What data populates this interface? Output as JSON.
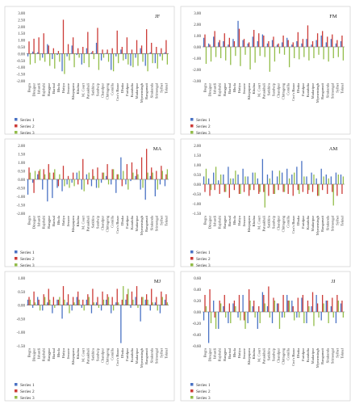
{
  "colors": {
    "series1": "#4a72c4",
    "series2": "#cc3b37",
    "series3": "#93bd4a"
  },
  "chart_data": [
    {
      "type": "bar",
      "title": "JF",
      "ylim": [
        -2.0,
        3.0
      ],
      "yticks": [
        "3.00",
        "2.50",
        "2.00",
        "1.50",
        "1.00",
        "0.50",
        "0.00",
        "-0.50",
        "-1.00",
        "-1.50",
        "-2.00"
      ],
      "categories": [
        "Bogra",
        "Dinajpur",
        "Ishurdi",
        "Rajshahi",
        "Rangpur",
        "Barisal",
        "Bhola",
        "Hatiya",
        "Jessore",
        "Khepupara",
        "Khulna",
        "M. Court",
        "Patuakhali",
        "Satkhira",
        "Sandwip",
        "Chandpur",
        "Chittagong",
        "Comilla",
        "Cox's Bazar",
        "Dhaka",
        "Faridpur",
        "Kutubdia",
        "Madaripur",
        "Mymensingh",
        "Rangamati",
        "Sitakunda",
        "Srimongal",
        "Sylhet",
        "Teknaf"
      ],
      "series": [
        {
          "name": "Series 1",
          "values": [
            -0.2,
            0.15,
            0.1,
            -0.3,
            0.7,
            -0.4,
            -0.1,
            -1.3,
            -0.2,
            0.6,
            -0.1,
            -0.8,
            0.4,
            0.1,
            0.8,
            -0.5,
            0.05,
            -1.2,
            -0.2,
            0.3,
            -0.4,
            -0.9,
            -0.3,
            0.4,
            -0.9,
            0.1,
            -0.7,
            -0.2,
            0.1
          ]
        },
        {
          "name": "Series 2",
          "values": [
            0.9,
            1.1,
            1.2,
            1.5,
            0.6,
            0.4,
            0.2,
            2.5,
            0.7,
            1.2,
            0.4,
            0.5,
            1.6,
            0.2,
            1.9,
            0.3,
            0.3,
            0.4,
            1.7,
            0.5,
            1.2,
            0.3,
            1.0,
            0.6,
            1.8,
            0.8,
            0.5,
            0.4,
            1.0
          ]
        },
        {
          "name": "Series 3",
          "values": [
            -0.8,
            -0.7,
            -0.5,
            -0.6,
            -0.9,
            -1.1,
            -0.6,
            -1.5,
            -0.5,
            -1.0,
            -0.3,
            -0.7,
            -1.0,
            -0.4,
            -1.2,
            -0.3,
            -0.6,
            -1.3,
            -0.7,
            -0.5,
            -0.8,
            -1.0,
            -0.9,
            -0.6,
            -1.3,
            -0.7,
            -1.1,
            -0.5,
            -0.8
          ]
        }
      ],
      "legend": [
        "Series 1",
        "Series 2",
        "Series 3"
      ]
    },
    {
      "type": "bar",
      "title": "FM",
      "ylim": [
        -3.0,
        3.0
      ],
      "yticks": [
        "3.00",
        "2.00",
        "1.00",
        "0.00",
        "-1.00",
        "-2.00",
        "-3.00"
      ],
      "categories": [
        "Bogra",
        "Dinajpur",
        "Ishurdi",
        "Rajshahi",
        "Rangpur",
        "Barisal",
        "Bhola",
        "Hatiya",
        "Jessore",
        "Khepupara",
        "Khulna",
        "M. Court",
        "Patuakhali",
        "Satkhira",
        "Sandwip",
        "Chandpur",
        "Chittagong",
        "Comilla",
        "Cox's Bazar",
        "Dhaka",
        "Faridpur",
        "Kutubdia",
        "Madaripur",
        "Mymensingh",
        "Rangamati",
        "Sitakunda",
        "Srimongal",
        "Sylhet",
        "Teknaf"
      ],
      "series": [
        {
          "name": "Series 1",
          "values": [
            0.8,
            0.3,
            0.9,
            0.4,
            0.5,
            0.2,
            0.7,
            2.3,
            0.6,
            0.3,
            0.9,
            0.5,
            1.1,
            0.3,
            0.6,
            0.2,
            0.4,
            0.8,
            0.2,
            0.5,
            0.3,
            0.7,
            0.2,
            0.6,
            1.0,
            0.4,
            0.7,
            0.3,
            0.5
          ]
        },
        {
          "name": "Series 2",
          "values": [
            1.1,
            0.2,
            1.4,
            0.6,
            1.2,
            0.8,
            0.5,
            1.6,
            0.7,
            0.4,
            1.5,
            1.2,
            1.0,
            0.5,
            0.9,
            0.3,
            1.0,
            0.6,
            0.4,
            1.3,
            0.7,
            1.9,
            0.5,
            1.2,
            1.4,
            0.9,
            1.1,
            0.6,
            1.0
          ]
        },
        {
          "name": "Series 3",
          "values": [
            -1.5,
            -1.3,
            -0.9,
            -1.0,
            -1.2,
            -1.6,
            -0.8,
            -1.7,
            -0.7,
            -2.0,
            -1.4,
            -0.8,
            -0.9,
            -2.2,
            -1.3,
            -0.6,
            -0.7,
            -1.8,
            -1.0,
            -1.1,
            -0.9,
            -1.2,
            -1.0,
            -0.7,
            -1.1,
            -1.3,
            -1.0,
            -0.9,
            -1.2
          ]
        }
      ],
      "legend": [
        "Series 1",
        "Series 2",
        "Series 3"
      ]
    },
    {
      "type": "bar",
      "title": "MA",
      "ylim": [
        -2.0,
        2.0
      ],
      "yticks": [
        "2.00",
        "1.50",
        "1.00",
        "0.50",
        "0.00",
        "-0.50",
        "-1.00",
        "-1.50",
        "-2.00"
      ],
      "categories": [
        "Bogra",
        "Dinajpur",
        "Ishurdi",
        "Rajshahi",
        "Rangpur",
        "Barisal",
        "Bhola",
        "Hatiya",
        "Jessore",
        "Khepupara",
        "Khulna",
        "M. Court",
        "Patuakhali",
        "Satkhira",
        "Sandwip",
        "Chandpur",
        "Chittagong",
        "Comilla",
        "Cox's Bazar",
        "Dhaka",
        "Faridpur",
        "Kutubdia",
        "Madaripur",
        "Mymensingh",
        "Rangamati",
        "Sitakunda",
        "Srimongal",
        "Sylhet",
        "Teknaf"
      ],
      "series": [
        {
          "name": "Series 1",
          "values": [
            -0.9,
            -0.2,
            0.3,
            -0.6,
            -1.3,
            -1.1,
            -0.5,
            -0.7,
            -0.3,
            -0.2,
            0.4,
            -0.6,
            0.3,
            -0.4,
            -0.5,
            -0.2,
            0.2,
            -0.3,
            -0.8,
            1.3,
            -0.3,
            -0.1,
            0.2,
            -0.6,
            -1.2,
            0.2,
            -1.0,
            -0.3,
            -0.4
          ]
        },
        {
          "name": "Series 2",
          "values": [
            0.7,
            -0.8,
            0.5,
            0.6,
            0.9,
            0.4,
            -0.4,
            0.8,
            0.2,
            0.4,
            -0.3,
            1.2,
            -0.3,
            0.6,
            0.7,
            0.4,
            0.9,
            0.6,
            0.3,
            -0.4,
            0.9,
            1.0,
            0.6,
            1.3,
            1.8,
            0.7,
            0.5,
            0.8,
            0.3
          ]
        },
        {
          "name": "Series 3",
          "values": [
            0.4,
            0.5,
            0.6,
            0.3,
            0.4,
            0.6,
            0.3,
            -0.4,
            -0.5,
            -0.4,
            0.5,
            -0.7,
            0.4,
            0.2,
            -0.5,
            0.4,
            -0.3,
            0.6,
            0.3,
            0.5,
            -0.6,
            0.4,
            0.3,
            -0.5,
            0.4,
            0.4,
            -0.6,
            0.5,
            0.6
          ]
        }
      ],
      "legend": [
        "Series 1",
        "Series 2",
        "Series 3"
      ]
    },
    {
      "type": "bar",
      "title": "AM",
      "ylim": [
        -1.5,
        2.0
      ],
      "yticks": [
        "2.00",
        "1.50",
        "1.00",
        "0.50",
        "0.00",
        "-0.50",
        "-1.00",
        "-1.50"
      ],
      "categories": [
        "Bogra",
        "Dinajpur",
        "Ishurdi",
        "Rajshahi",
        "Rangpur",
        "Barisal",
        "Bhola",
        "Hatiya",
        "Jessore",
        "Khepupara",
        "Khulna",
        "M. Court",
        "Patuakhali",
        "Satkhira",
        "Sandwip",
        "Chandpur",
        "Chittagong",
        "Comilla",
        "Cox's Bazar",
        "Dhaka",
        "Faridpur",
        "Kutubdia",
        "Madaripur",
        "Mymensingh",
        "Rangamati",
        "Sitakunda",
        "Srimongal",
        "Sylhet",
        "Teknaf"
      ],
      "series": [
        {
          "name": "Series 1",
          "values": [
            0.4,
            0.3,
            0.6,
            0.2,
            0.5,
            0.9,
            0.3,
            0.5,
            0.8,
            0.4,
            0.6,
            0.3,
            1.3,
            0.5,
            0.7,
            0.4,
            0.6,
            0.8,
            0.5,
            0.9,
            1.2,
            0.4,
            0.6,
            0.3,
            0.8,
            0.5,
            0.4,
            0.6,
            0.5
          ]
        },
        {
          "name": "Series 2",
          "values": [
            -0.4,
            -0.6,
            -0.3,
            -0.5,
            -0.4,
            -0.7,
            -0.3,
            -0.5,
            -0.4,
            -0.6,
            -0.3,
            -0.5,
            -0.4,
            -0.6,
            -0.5,
            -0.3,
            -0.4,
            -0.5,
            -0.6,
            -0.3,
            -0.4,
            -0.5,
            -0.4,
            -0.6,
            -0.3,
            -0.5,
            -0.4,
            -0.6,
            -0.5
          ]
        },
        {
          "name": "Series 3",
          "values": [
            0.8,
            -0.3,
            0.9,
            0.5,
            -0.4,
            0.3,
            0.7,
            -0.5,
            0.4,
            -0.3,
            0.6,
            -0.4,
            -1.2,
            0.3,
            -0.5,
            0.7,
            -0.4,
            0.3,
            0.6,
            -0.5,
            0.4,
            -0.3,
            0.5,
            -0.6,
            0.4,
            0.3,
            -1.1,
            0.5,
            0.4
          ]
        }
      ],
      "legend": [
        "Series 1",
        "Series 2",
        "Series 3"
      ]
    },
    {
      "type": "bar",
      "title": "MJ",
      "ylim": [
        -1.5,
        1.0
      ],
      "yticks": [
        "1.00",
        "0.50",
        "0.00",
        "-0.50",
        "-1.00",
        "-1.50"
      ],
      "categories": [
        "Bogra",
        "Dinajpur",
        "Ishurdi",
        "Rajshahi",
        "Rangpur",
        "Barisal",
        "Bhola",
        "Hatiya",
        "Jessore",
        "Khepupara",
        "Khulna",
        "M. Court",
        "Patuakhali",
        "Satkhira",
        "Sandwip",
        "Chandpur",
        "Chittagong",
        "Comilla",
        "Cox's Bazar",
        "Dhaka",
        "Faridpur",
        "Kutubdia",
        "Madaripur",
        "Mymensingh",
        "Rangamati",
        "Sitakunda",
        "Srimongal",
        "Sylhet",
        "Teknaf"
      ],
      "series": [
        {
          "name": "Series 1",
          "values": [
            0.2,
            -0.1,
            0.3,
            -0.2,
            0.1,
            -0.3,
            0.2,
            -0.5,
            0.1,
            -0.2,
            0.3,
            -0.1,
            0.2,
            -0.3,
            0.1,
            -0.2,
            0.2,
            -0.3,
            0.1,
            -1.4,
            0.2,
            -0.1,
            0.3,
            -0.6,
            0.2,
            -0.2,
            0.1,
            -0.3,
            0.2
          ]
        },
        {
          "name": "Series 2",
          "values": [
            0.3,
            0.5,
            0.2,
            0.4,
            0.6,
            0.3,
            0.2,
            0.7,
            0.4,
            0.3,
            0.5,
            0.2,
            0.4,
            0.6,
            0.3,
            0.5,
            0.4,
            0.3,
            0.6,
            0.2,
            0.4,
            0.5,
            0.7,
            0.3,
            0.4,
            0.6,
            0.3,
            0.5,
            0.4
          ]
        },
        {
          "name": "Series 3",
          "values": [
            0.2,
            0.1,
            -0.2,
            0.3,
            0.2,
            -0.1,
            0.3,
            0.2,
            -0.3,
            0.1,
            0.2,
            -0.2,
            0.3,
            0.1,
            -0.1,
            0.2,
            0.3,
            -0.2,
            0.1,
            0.7,
            0.6,
            0.2,
            -0.1,
            0.3,
            0.2,
            0.1,
            -0.2,
            0.3,
            0.1
          ]
        }
      ],
      "legend": [
        "Series 1",
        "Series 2",
        "Series 3"
      ]
    },
    {
      "type": "bar",
      "title": "JJ",
      "ylim": [
        -0.6,
        0.6
      ],
      "yticks": [
        "0.60",
        "0.40",
        "0.20",
        "0.00",
        "-0.20",
        "-0.40",
        "-0.60"
      ],
      "categories": [
        "Bogra",
        "Dinajpur",
        "Ishurdi",
        "Rajshahi",
        "Rangpur",
        "Barisal",
        "Bhola",
        "Hatiya",
        "Jessore",
        "Khepupara",
        "Khulna",
        "M. Court",
        "Patuakhali",
        "Satkhira",
        "Sandwip",
        "Chandpur",
        "Chittagong",
        "Comilla",
        "Cox's Bazar",
        "Dhaka",
        "Faridpur",
        "Kutubdia",
        "Madaripur",
        "Mymensingh",
        "Rangamati",
        "Sitakunda",
        "Srimongal",
        "Sylhet",
        "Teknaf"
      ],
      "series": [
        {
          "name": "Series 1",
          "values": [
            -0.15,
            -0.55,
            0.2,
            -0.3,
            0.1,
            -0.2,
            0.15,
            -0.1,
            0.3,
            -0.2,
            0.1,
            -0.3,
            0.35,
            0.1,
            -0.2,
            0.15,
            -0.1,
            0.3,
            0.2,
            -0.1,
            0.25,
            -0.2,
            0.1,
            0.3,
            -0.15,
            0.2,
            0.1,
            -0.2,
            0.15
          ]
        },
        {
          "name": "Series 2",
          "values": [
            0.3,
            0.4,
            -0.1,
            0.2,
            0.3,
            0.15,
            0.2,
            0.3,
            -0.15,
            0.4,
            0.2,
            0.1,
            0.3,
            0.45,
            0.25,
            0.15,
            0.3,
            0.2,
            0.1,
            0.25,
            0.3,
            0.2,
            0.35,
            0.15,
            0.3,
            0.2,
            0.25,
            0.3,
            0.2
          ]
        },
        {
          "name": "Series 3",
          "values": [
            0.1,
            -0.2,
            -0.3,
            0.15,
            -0.1,
            -0.2,
            0.1,
            -0.15,
            -0.3,
            0.2,
            -0.1,
            -0.2,
            0.15,
            -0.1,
            0.2,
            -0.3,
            -0.1,
            0.2,
            -0.15,
            -0.1,
            -0.2,
            0.1,
            -0.25,
            -0.1,
            0.15,
            -0.2,
            -0.1,
            0.2,
            -0.1
          ]
        }
      ],
      "legend": [
        "Series 1",
        "Series 2",
        "Series 3"
      ]
    }
  ]
}
